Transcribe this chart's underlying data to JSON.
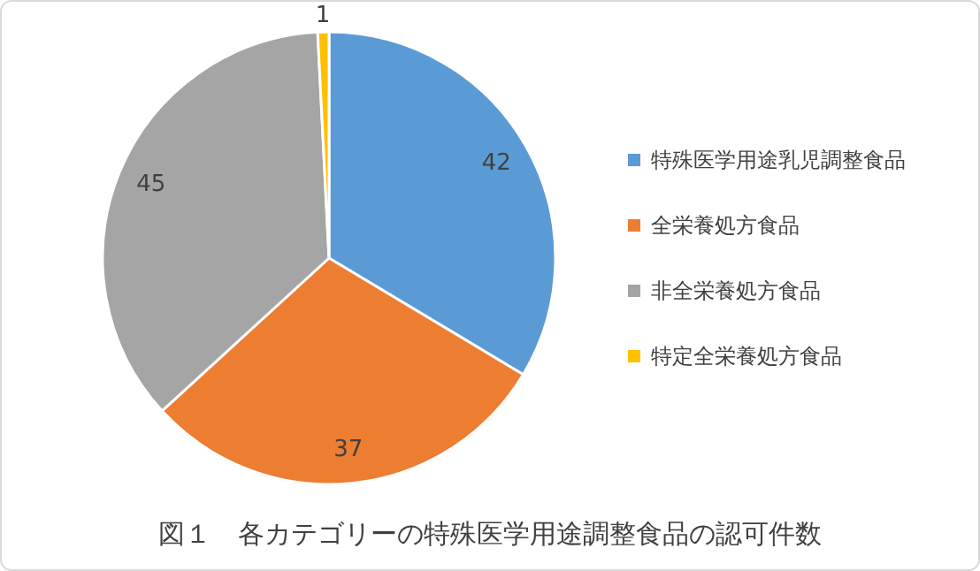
{
  "chart_data": {
    "type": "pie",
    "title": "図１　各カテゴリーの特殊医学用途調整食品の認可件数",
    "categories": [
      "特殊医学用途乳児調整食品",
      "全栄養処方食品",
      "非全栄養処方食品",
      "特定全栄養処方食品"
    ],
    "values": [
      42,
      37,
      45,
      1
    ],
    "colors": [
      "#5b9bd5",
      "#ed7d31",
      "#a5a5a5",
      "#ffc000"
    ],
    "data_labels": true,
    "legend": "right"
  }
}
